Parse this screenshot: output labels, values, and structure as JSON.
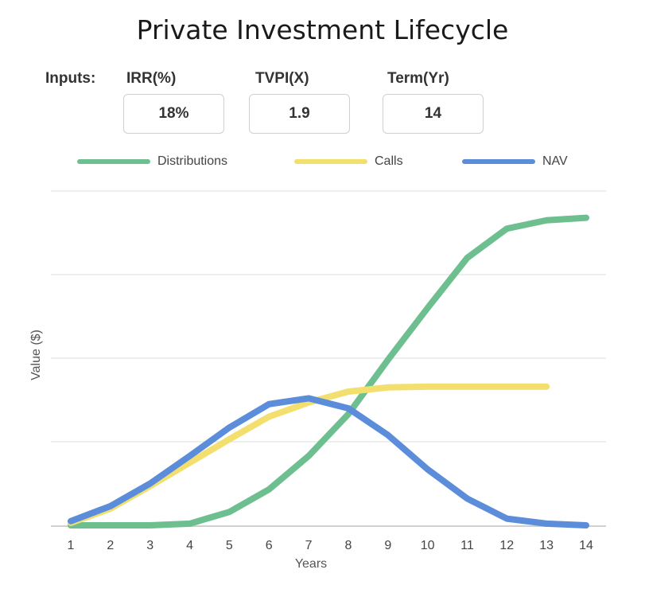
{
  "title": "Private Investment Lifecycle",
  "inputs": {
    "label": "Inputs:",
    "irr_label": "IRR(%)",
    "irr_value": "18%",
    "tvpi_label": "TVPI(X)",
    "tvpi_value": "1.9",
    "term_label": "Term(Yr)",
    "term_value": "14"
  },
  "colors": {
    "distributions": "#6dbf8f",
    "calls": "#f2df6e",
    "nav": "#5b8ddb",
    "grid": "#dcdcdc",
    "baseline": "#d0d0d0"
  },
  "chart_data": {
    "type": "line",
    "title": "Private Investment Lifecycle",
    "xlabel": "Years",
    "ylabel": "Value ($)",
    "x": [
      1,
      2,
      3,
      4,
      5,
      6,
      7,
      8,
      9,
      10,
      11,
      12,
      13,
      14
    ],
    "ylim": [
      0,
      4
    ],
    "grid": true,
    "legend_position": "top",
    "series": [
      {
        "name": "Distributions",
        "color": "#6dbf8f",
        "values": [
          0,
          0,
          0,
          0.02,
          0.16,
          0.43,
          0.83,
          1.33,
          1.98,
          2.6,
          3.2,
          3.55,
          3.65,
          3.68
        ]
      },
      {
        "name": "Calls",
        "color": "#f2df6e",
        "values": [
          0.03,
          0.2,
          0.47,
          0.75,
          1.03,
          1.3,
          1.47,
          1.6,
          1.65,
          1.66,
          1.66,
          1.66,
          1.66,
          1.67
        ]
      },
      {
        "name": "NAV",
        "color": "#5b8ddb",
        "values": [
          0.05,
          0.23,
          0.5,
          0.83,
          1.17,
          1.45,
          1.52,
          1.4,
          1.08,
          0.67,
          0.32,
          0.08,
          0.02,
          0.0
        ]
      }
    ]
  }
}
